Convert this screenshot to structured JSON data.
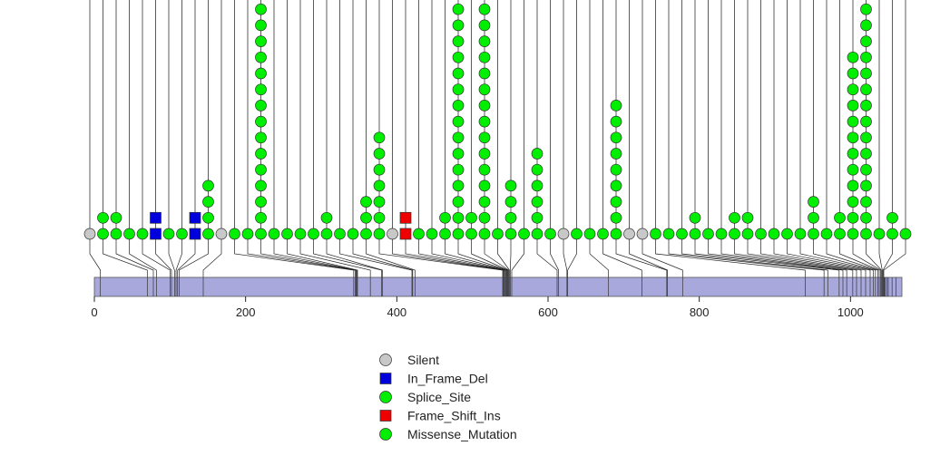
{
  "chart_data": {
    "type": "scatter",
    "subtype": "lollipop-mutation-plot",
    "xlim": [
      0,
      1068
    ],
    "ticks": [
      0,
      200,
      400,
      600,
      800,
      1000
    ],
    "tick_labels": [
      "0",
      "200",
      "400",
      "600",
      "800",
      "1000"
    ],
    "domain_bar": {
      "start": 0,
      "end": 1068,
      "color": "#a8a8dc"
    },
    "colors": {
      "Silent": "#c8c8c8",
      "In_Frame_Del": "#0000dd",
      "Splice_Site": "#00ee00",
      "Frame_Shift_Ins": "#ee0000",
      "Missense_Mutation": "#00ee00"
    },
    "legend": [
      {
        "label": "Silent",
        "shape": "circle",
        "type": "Silent"
      },
      {
        "label": "In_Frame_Del",
        "shape": "square",
        "type": "In_Frame_Del"
      },
      {
        "label": "Splice_Site",
        "shape": "circle",
        "type": "Splice_Site"
      },
      {
        "label": "Frame_Shift_Ins",
        "shape": "square",
        "type": "Frame_Shift_Ins"
      },
      {
        "label": "Missense_Mutation",
        "shape": "circle",
        "type": "Missense_Mutation"
      }
    ],
    "mutations": [
      {
        "pos": 1,
        "stack": [
          [
            "Silent",
            1
          ]
        ]
      },
      {
        "pos": 11,
        "stack": [
          [
            "Missense_Mutation",
            2
          ]
        ]
      },
      {
        "pos": 24,
        "stack": [
          [
            "Missense_Mutation",
            2
          ]
        ]
      },
      {
        "pos": 41,
        "stack": [
          [
            "Missense_Mutation",
            1
          ]
        ]
      },
      {
        "pos": 58,
        "stack": [
          [
            "Missense_Mutation",
            1
          ]
        ]
      },
      {
        "pos": 75,
        "stack": [
          [
            "In_Frame_Del",
            2
          ]
        ]
      },
      {
        "pos": 92,
        "stack": [
          [
            "Missense_Mutation",
            1
          ]
        ]
      },
      {
        "pos": 110,
        "stack": [
          [
            "Missense_Mutation",
            1
          ]
        ]
      },
      {
        "pos": 127,
        "stack": [
          [
            "In_Frame_Del",
            2
          ]
        ]
      },
      {
        "pos": 144,
        "stack": [
          [
            "Missense_Mutation",
            4
          ]
        ]
      },
      {
        "pos": 161,
        "stack": [
          [
            "Silent",
            1
          ]
        ]
      },
      {
        "pos": 185,
        "stack": [
          [
            "Missense_Mutation",
            1
          ]
        ]
      },
      {
        "pos": 203,
        "stack": [
          [
            "Missense_Mutation",
            1
          ]
        ]
      },
      {
        "pos": 220,
        "stack": [
          [
            "Missense_Mutation",
            16
          ]
        ]
      },
      {
        "pos": 237,
        "stack": [
          [
            "Missense_Mutation",
            1
          ]
        ]
      },
      {
        "pos": 255,
        "stack": [
          [
            "Missense_Mutation",
            1
          ]
        ]
      },
      {
        "pos": 272,
        "stack": [
          [
            "Missense_Mutation",
            1
          ]
        ]
      },
      {
        "pos": 289,
        "stack": [
          [
            "Missense_Mutation",
            1
          ]
        ]
      },
      {
        "pos": 307,
        "stack": [
          [
            "Missense_Mutation",
            2
          ]
        ]
      },
      {
        "pos": 324,
        "stack": [
          [
            "Missense_Mutation",
            1
          ]
        ]
      },
      {
        "pos": 341,
        "stack": [
          [
            "Missense_Mutation",
            1
          ]
        ]
      },
      {
        "pos": 359,
        "stack": [
          [
            "Missense_Mutation",
            3
          ]
        ]
      },
      {
        "pos": 376,
        "stack": [
          [
            "Missense_Mutation",
            7
          ]
        ]
      },
      {
        "pos": 393,
        "stack": [
          [
            "Silent",
            1
          ]
        ]
      },
      {
        "pos": 410,
        "stack": [
          [
            "Frame_Shift_Ins",
            2
          ]
        ]
      },
      {
        "pos": 428,
        "stack": [
          [
            "Missense_Mutation",
            1
          ]
        ]
      },
      {
        "pos": 445,
        "stack": [
          [
            "Missense_Mutation",
            1
          ]
        ]
      },
      {
        "pos": 462,
        "stack": [
          [
            "Missense_Mutation",
            2
          ]
        ]
      },
      {
        "pos": 479,
        "stack": [
          [
            "Missense_Mutation",
            16
          ]
        ]
      },
      {
        "pos": 497,
        "stack": [
          [
            "Missense_Mutation",
            2
          ]
        ]
      },
      {
        "pos": 514,
        "stack": [
          [
            "Missense_Mutation",
            16
          ]
        ]
      },
      {
        "pos": 531,
        "stack": [
          [
            "Missense_Mutation",
            1
          ]
        ]
      },
      {
        "pos": 549,
        "stack": [
          [
            "Missense_Mutation",
            4
          ]
        ]
      },
      {
        "pos": 566,
        "stack": [
          [
            "Missense_Mutation",
            1
          ]
        ]
      },
      {
        "pos": 583,
        "stack": [
          [
            "Missense_Mutation",
            6
          ]
        ]
      },
      {
        "pos": 601,
        "stack": [
          [
            "Missense_Mutation",
            1
          ]
        ]
      },
      {
        "pos": 618,
        "stack": [
          [
            "Silent",
            1
          ]
        ]
      },
      {
        "pos": 635,
        "stack": [
          [
            "Missense_Mutation",
            1
          ]
        ]
      },
      {
        "pos": 653,
        "stack": [
          [
            "Missense_Mutation",
            1
          ]
        ]
      },
      {
        "pos": 670,
        "stack": [
          [
            "Missense_Mutation",
            1
          ]
        ]
      },
      {
        "pos": 687,
        "stack": [
          [
            "Missense_Mutation",
            9
          ]
        ]
      },
      {
        "pos": 705,
        "stack": [
          [
            "Silent",
            1
          ]
        ]
      },
      {
        "pos": 722,
        "stack": [
          [
            "Silent",
            1
          ]
        ]
      },
      {
        "pos": 739,
        "stack": [
          [
            "Missense_Mutation",
            1
          ]
        ]
      },
      {
        "pos": 757,
        "stack": [
          [
            "Missense_Mutation",
            1
          ]
        ]
      },
      {
        "pos": 774,
        "stack": [
          [
            "Missense_Mutation",
            1
          ]
        ]
      },
      {
        "pos": 791,
        "stack": [
          [
            "Missense_Mutation",
            2
          ]
        ]
      },
      {
        "pos": 808,
        "stack": [
          [
            "Missense_Mutation",
            1
          ]
        ]
      },
      {
        "pos": 826,
        "stack": [
          [
            "Missense_Mutation",
            1
          ]
        ]
      },
      {
        "pos": 843,
        "stack": [
          [
            "Missense_Mutation",
            2
          ]
        ]
      },
      {
        "pos": 860,
        "stack": [
          [
            "Missense_Mutation",
            2
          ]
        ]
      },
      {
        "pos": 878,
        "stack": [
          [
            "Missense_Mutation",
            1
          ]
        ]
      },
      {
        "pos": 895,
        "stack": [
          [
            "Missense_Mutation",
            1
          ]
        ]
      },
      {
        "pos": 912,
        "stack": [
          [
            "Missense_Mutation",
            1
          ]
        ]
      },
      {
        "pos": 930,
        "stack": [
          [
            "Missense_Mutation",
            1
          ]
        ]
      },
      {
        "pos": 947,
        "stack": [
          [
            "Missense_Mutation",
            3
          ]
        ]
      },
      {
        "pos": 964,
        "stack": [
          [
            "Missense_Mutation",
            1
          ]
        ]
      },
      {
        "pos": 982,
        "stack": [
          [
            "Missense_Mutation",
            2
          ]
        ]
      },
      {
        "pos": 999,
        "stack": [
          [
            "Missense_Mutation",
            12
          ]
        ]
      },
      {
        "pos": 1016,
        "stack": [
          [
            "Missense_Mutation",
            16
          ]
        ]
      },
      {
        "pos": 1034,
        "stack": [
          [
            "Missense_Mutation",
            1
          ]
        ]
      },
      {
        "pos": 1051,
        "stack": [
          [
            "Missense_Mutation",
            2
          ]
        ]
      },
      {
        "pos": 1068,
        "stack": [
          [
            "Missense_Mutation",
            1
          ]
        ]
      }
    ],
    "anchors": [
      8,
      70,
      78,
      82,
      100,
      102,
      106,
      108,
      110,
      112,
      144,
      343,
      345,
      346,
      347,
      348,
      365,
      380,
      381,
      420,
      421,
      424,
      540,
      541,
      542,
      543,
      544,
      545,
      546,
      547,
      548,
      549,
      550,
      552,
      612,
      614,
      625,
      626,
      680,
      724,
      757,
      758,
      778,
      940,
      965,
      970,
      985,
      990,
      995,
      1003,
      1008,
      1014,
      1020,
      1026,
      1030,
      1033,
      1036,
      1038,
      1040,
      1041,
      1042,
      1043,
      1044,
      1045,
      1046,
      1048,
      1050,
      1055,
      1060
    ]
  }
}
